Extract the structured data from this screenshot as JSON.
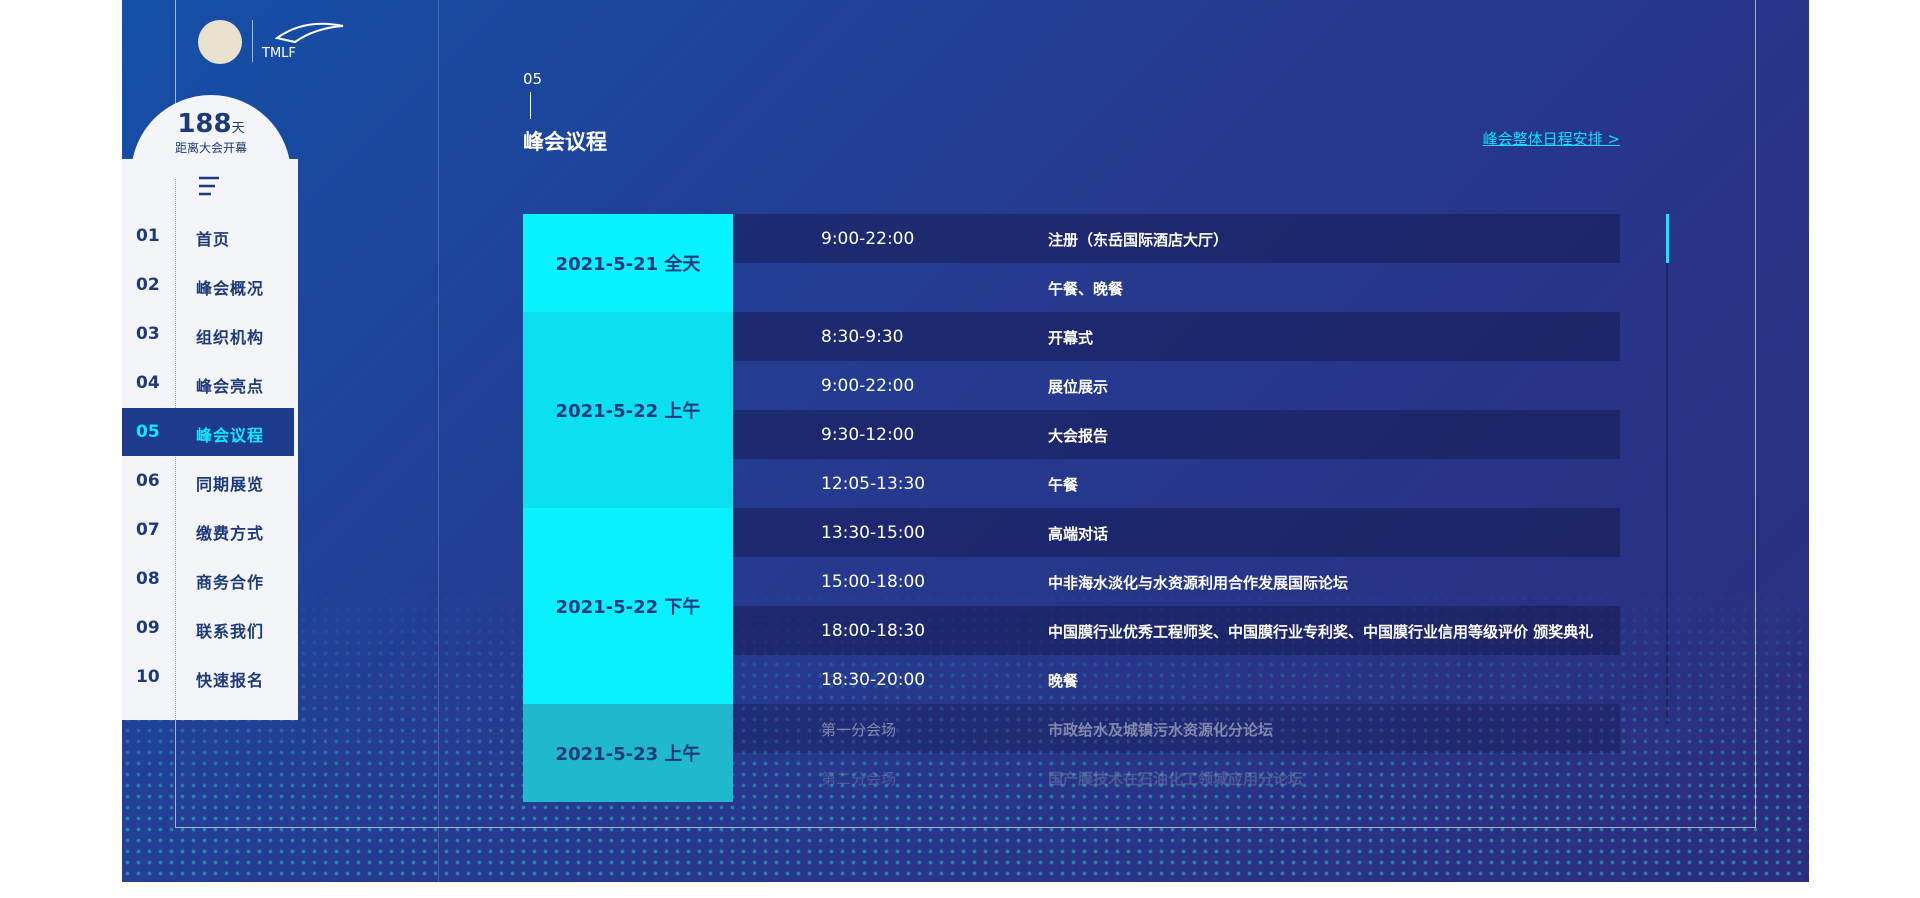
{
  "header": {
    "logo_text": "TMLF"
  },
  "countdown": {
    "number": "188",
    "unit": "天",
    "label": "距离大会开幕"
  },
  "nav": [
    {
      "num": "01",
      "label": "首页"
    },
    {
      "num": "02",
      "label": "峰会概况"
    },
    {
      "num": "03",
      "label": "组织机构"
    },
    {
      "num": "04",
      "label": "峰会亮点"
    },
    {
      "num": "05",
      "label": "峰会议程",
      "active": true
    },
    {
      "num": "06",
      "label": "同期展览"
    },
    {
      "num": "07",
      "label": "缴费方式"
    },
    {
      "num": "08",
      "label": "商务合作"
    },
    {
      "num": "09",
      "label": "联系我们"
    },
    {
      "num": "10",
      "label": "快速报名"
    }
  ],
  "section": {
    "number": "05",
    "title": "峰会议程",
    "link": "峰会整体日程安排 >"
  },
  "schedule": [
    {
      "date": "2021-5-21 全天",
      "rows": [
        {
          "time": "9:00-22:00",
          "event": "注册（东岳国际酒店大厅）"
        },
        {
          "event": "午餐、晚餐"
        }
      ]
    },
    {
      "date": "2021-5-22 上午",
      "rows": [
        {
          "time": "8:30-9:30",
          "event": "开幕式"
        },
        {
          "time": "9:00-22:00",
          "event": "展位展示"
        },
        {
          "time": "9:30-12:00",
          "event": "大会报告"
        },
        {
          "time": "12:05-13:30",
          "event": "午餐"
        }
      ]
    },
    {
      "date": "2021-5-22 下午",
      "rows": [
        {
          "time": "13:30-15:00",
          "event": "高端对话"
        },
        {
          "time": "15:00-18:00",
          "event": "中非海水淡化与水资源利用合作发展国际论坛"
        },
        {
          "time": "18:00-18:30",
          "event": "中国膜行业优秀工程师奖、中国膜行业专利奖、中国膜行业信用等级评价 颁奖典礼"
        },
        {
          "time": "18:30-20:00",
          "event": "晚餐"
        }
      ]
    },
    {
      "date": "2021-5-23 上午",
      "rows": [
        {
          "time": "第一分会场",
          "event": "市政给水及城镇污水资源化分论坛"
        },
        {
          "time": "第二分会场",
          "event": "国产膜技术在石油化工领域应用分论坛"
        }
      ]
    }
  ]
}
